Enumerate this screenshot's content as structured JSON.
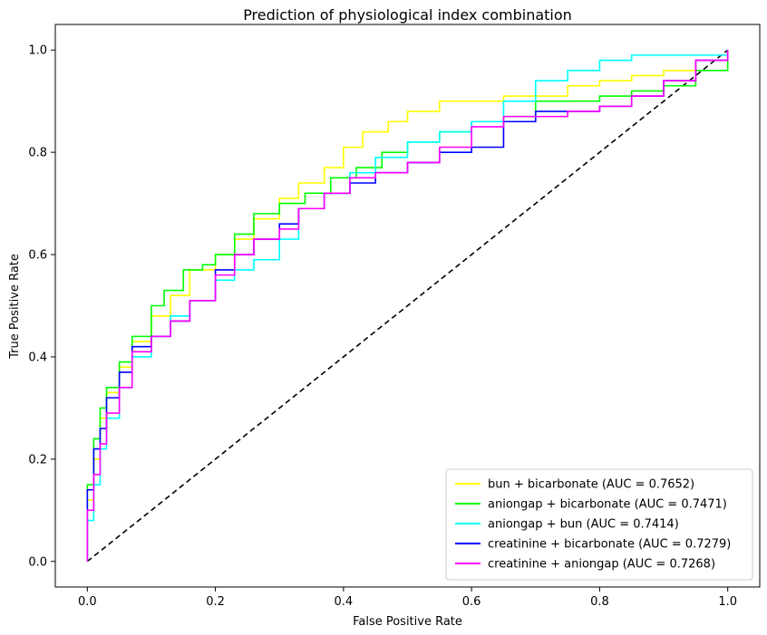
{
  "chart_data": {
    "type": "line",
    "title": "Prediction of physiological index combination",
    "xlabel": "False Positive Rate",
    "ylabel": "True Positive Rate",
    "xlim": [
      -0.05,
      1.05
    ],
    "ylim": [
      -0.05,
      1.05
    ],
    "xticks": [
      "0.0",
      "0.2",
      "0.4",
      "0.6",
      "0.8",
      "1.0"
    ],
    "yticks": [
      "0.0",
      "0.2",
      "0.4",
      "0.6",
      "0.8",
      "1.0"
    ],
    "grid": false,
    "legend_position": "lower right",
    "series": [
      {
        "name": "bun + bicarbonate (AUC = 0.7652)",
        "color": "#ffff00",
        "x": [
          0,
          0,
          0.01,
          0.02,
          0.03,
          0.05,
          0.07,
          0.1,
          0.13,
          0.16,
          0.2,
          0.23,
          0.26,
          0.3,
          0.33,
          0.37,
          0.4,
          0.43,
          0.47,
          0.5,
          0.55,
          0.6,
          0.65,
          0.7,
          0.75,
          0.8,
          0.85,
          0.9,
          0.95,
          1.0
        ],
        "y": [
          0,
          0.12,
          0.2,
          0.28,
          0.33,
          0.38,
          0.43,
          0.48,
          0.52,
          0.57,
          0.6,
          0.63,
          0.67,
          0.71,
          0.74,
          0.77,
          0.81,
          0.84,
          0.86,
          0.88,
          0.9,
          0.9,
          0.91,
          0.91,
          0.93,
          0.94,
          0.95,
          0.96,
          0.98,
          1.0
        ]
      },
      {
        "name": "aniongap + bicarbonate (AUC = 0.7471)",
        "color": "#00ff00",
        "x": [
          0,
          0,
          0.01,
          0.02,
          0.03,
          0.05,
          0.07,
          0.1,
          0.12,
          0.15,
          0.18,
          0.2,
          0.23,
          0.26,
          0.3,
          0.34,
          0.38,
          0.42,
          0.46,
          0.5,
          0.55,
          0.6,
          0.65,
          0.7,
          0.75,
          0.8,
          0.85,
          0.9,
          0.95,
          1.0
        ],
        "y": [
          0,
          0.15,
          0.24,
          0.3,
          0.34,
          0.39,
          0.44,
          0.5,
          0.53,
          0.57,
          0.58,
          0.6,
          0.64,
          0.68,
          0.7,
          0.72,
          0.75,
          0.77,
          0.8,
          0.82,
          0.84,
          0.86,
          0.87,
          0.9,
          0.9,
          0.91,
          0.92,
          0.93,
          0.96,
          1.0
        ]
      },
      {
        "name": "aniongap + bun (AUC = 0.7414)",
        "color": "#00ffff",
        "x": [
          0,
          0,
          0.01,
          0.02,
          0.03,
          0.05,
          0.07,
          0.1,
          0.13,
          0.16,
          0.2,
          0.23,
          0.26,
          0.3,
          0.33,
          0.37,
          0.41,
          0.45,
          0.5,
          0.55,
          0.6,
          0.65,
          0.7,
          0.75,
          0.8,
          0.85,
          0.9,
          0.95,
          1.0
        ],
        "y": [
          0,
          0.08,
          0.15,
          0.22,
          0.28,
          0.34,
          0.4,
          0.44,
          0.48,
          0.51,
          0.55,
          0.57,
          0.59,
          0.63,
          0.69,
          0.72,
          0.76,
          0.79,
          0.82,
          0.84,
          0.86,
          0.9,
          0.94,
          0.96,
          0.98,
          0.99,
          0.99,
          0.99,
          1.0
        ]
      },
      {
        "name": "creatinine + bicarbonate (AUC = 0.7279)",
        "color": "#0000ff",
        "x": [
          0,
          0,
          0.01,
          0.02,
          0.03,
          0.05,
          0.07,
          0.1,
          0.13,
          0.16,
          0.2,
          0.23,
          0.26,
          0.3,
          0.33,
          0.37,
          0.41,
          0.45,
          0.5,
          0.55,
          0.6,
          0.65,
          0.7,
          0.75,
          0.8,
          0.85,
          0.9,
          0.95,
          1.0
        ],
        "y": [
          0,
          0.14,
          0.22,
          0.26,
          0.32,
          0.37,
          0.42,
          0.44,
          0.47,
          0.51,
          0.57,
          0.6,
          0.63,
          0.66,
          0.69,
          0.72,
          0.74,
          0.76,
          0.78,
          0.8,
          0.81,
          0.86,
          0.88,
          0.88,
          0.89,
          0.91,
          0.94,
          0.98,
          1.0
        ]
      },
      {
        "name": "creatinine + aniongap (AUC = 0.7268)",
        "color": "#ff00ff",
        "x": [
          0,
          0,
          0.01,
          0.02,
          0.03,
          0.05,
          0.07,
          0.1,
          0.13,
          0.16,
          0.2,
          0.23,
          0.26,
          0.3,
          0.33,
          0.37,
          0.41,
          0.45,
          0.5,
          0.55,
          0.6,
          0.65,
          0.7,
          0.75,
          0.8,
          0.85,
          0.9,
          0.95,
          1.0
        ],
        "y": [
          0,
          0.1,
          0.17,
          0.23,
          0.29,
          0.34,
          0.41,
          0.44,
          0.47,
          0.51,
          0.56,
          0.6,
          0.63,
          0.65,
          0.69,
          0.72,
          0.75,
          0.76,
          0.78,
          0.81,
          0.85,
          0.87,
          0.87,
          0.88,
          0.89,
          0.91,
          0.94,
          0.98,
          1.0
        ]
      }
    ],
    "reference_line": {
      "x": [
        0,
        1
      ],
      "y": [
        0,
        1
      ],
      "color": "#000000",
      "style": "dashed"
    }
  }
}
